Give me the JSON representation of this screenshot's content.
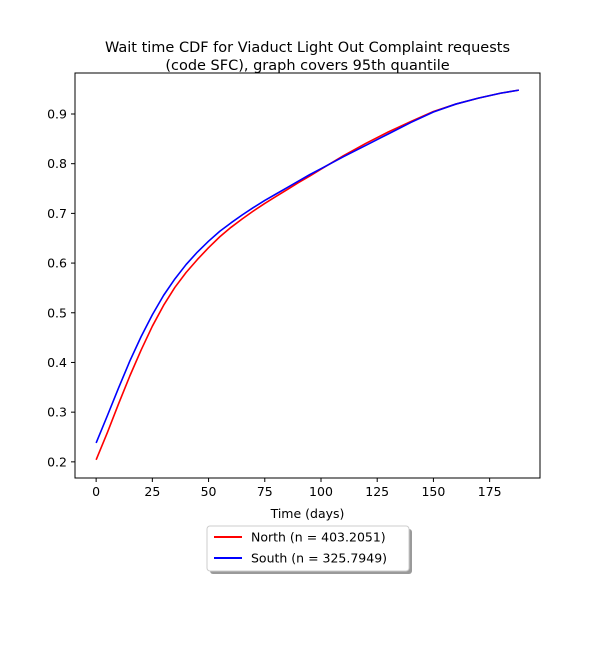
{
  "chart_data": {
    "type": "line",
    "title_line1": "Wait time CDF for Viaduct Light Out Complaint  requests",
    "title_line2": "(code SFC), graph covers 95th quantile",
    "xlabel": "Time (days)",
    "ylabel": "",
    "xlim": [
      -9.4,
      197.4
    ],
    "ylim": [
      0.1675,
      0.9825
    ],
    "xticks": [
      0,
      25,
      50,
      75,
      100,
      125,
      150,
      175
    ],
    "yticks": [
      0.2,
      0.3,
      0.4,
      0.5,
      0.6,
      0.7,
      0.8,
      0.9
    ],
    "grid": false,
    "legend_position": "below-center",
    "series": [
      {
        "name": "North (n = 403.2051)",
        "color": "#ff0000",
        "x": [
          0,
          5,
          10,
          15,
          20,
          25,
          30,
          35,
          40,
          45,
          50,
          55,
          60,
          65,
          70,
          75,
          80,
          85,
          90,
          95,
          100,
          110,
          120,
          130,
          140,
          150,
          160,
          170,
          180,
          188
        ],
        "y": [
          0.204,
          0.259,
          0.317,
          0.373,
          0.425,
          0.473,
          0.515,
          0.551,
          0.581,
          0.607,
          0.631,
          0.653,
          0.672,
          0.689,
          0.705,
          0.72,
          0.734,
          0.748,
          0.762,
          0.775,
          0.789,
          0.816,
          0.841,
          0.864,
          0.885,
          0.905,
          0.92,
          0.932,
          0.942,
          0.948
        ]
      },
      {
        "name": "South (n = 325.7949)",
        "color": "#0000ff",
        "x": [
          0,
          5,
          10,
          15,
          20,
          25,
          30,
          35,
          40,
          45,
          50,
          55,
          60,
          65,
          70,
          75,
          80,
          85,
          90,
          95,
          100,
          110,
          120,
          130,
          140,
          150,
          160,
          170,
          180,
          188
        ],
        "y": [
          0.238,
          0.293,
          0.349,
          0.403,
          0.452,
          0.496,
          0.535,
          0.568,
          0.597,
          0.622,
          0.644,
          0.664,
          0.681,
          0.697,
          0.712,
          0.726,
          0.739,
          0.752,
          0.765,
          0.778,
          0.79,
          0.814,
          0.837,
          0.86,
          0.883,
          0.904,
          0.92,
          0.932,
          0.942,
          0.948
        ]
      }
    ]
  }
}
